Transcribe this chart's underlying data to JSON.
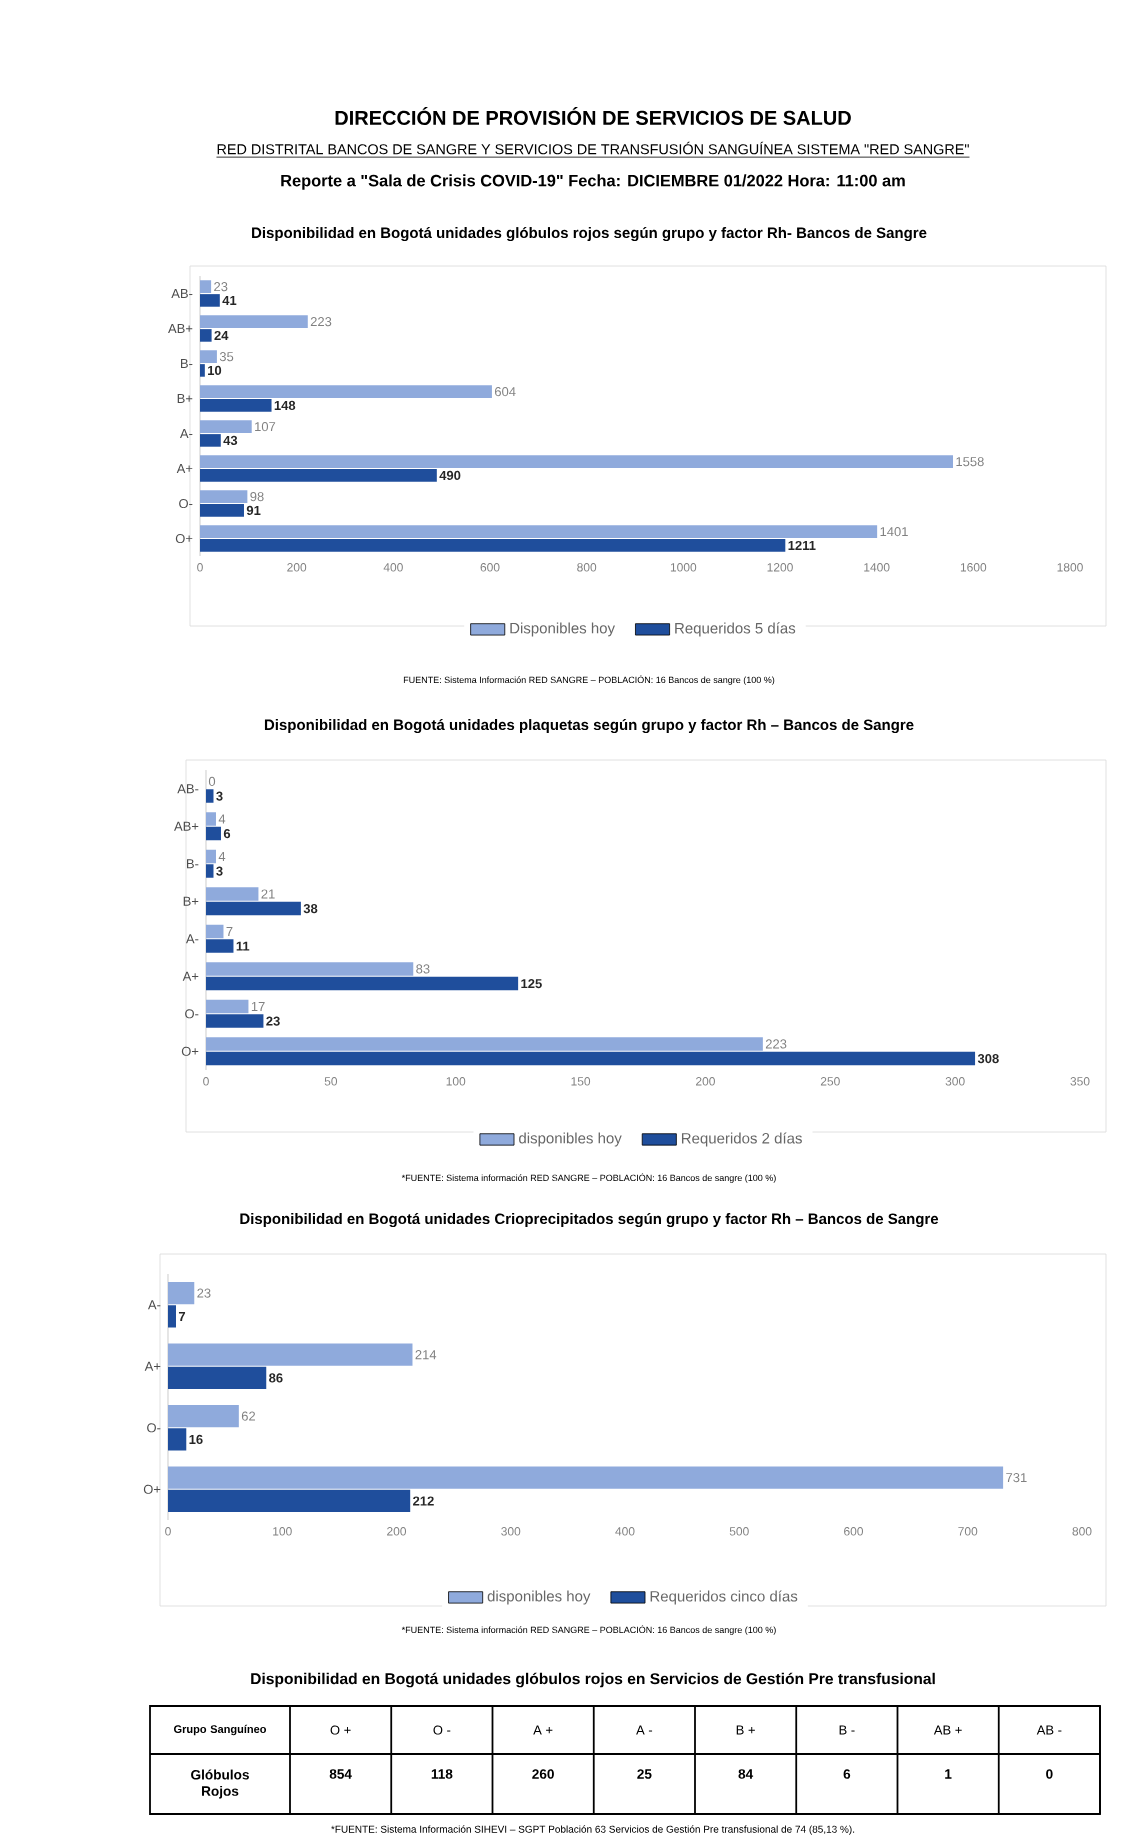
{
  "chart_data": [
    {
      "type": "bar",
      "orientation": "horizontal",
      "title": "Disponibilidad en Bogotá unidades glóbulos rojos según grupo y factor Rh- Bancos de Sangre",
      "annotations": [
        "DIRECCIÓN DE PROVISIÓN DE SERVICIOS DE SALUD",
        "RED DISTRITAL BANCOS DE SANGRE Y SERVICIOS DE TRANSFUSIÓN SANGUÍNEA SISTEMA \"RED SANGRE\"",
        "Reporte a \"Sala de Crisis COVID-19\" Fecha: DICIEMBRE 01/2022   Hora:  11:00 am",
        "FUENTE: Sistema Información RED SANGRE – POBLACIÓN: 16 Bancos de sangre (100 %)"
      ],
      "categories": [
        "AB-",
        "AB+",
        "B-",
        "B+",
        "A-",
        "A+",
        "O-",
        "O+"
      ],
      "series": [
        {
          "name": "Disponibles hoy",
          "color": "#8faadc",
          "values": [
            23,
            223,
            35,
            604,
            107,
            1558,
            98,
            1401
          ]
        },
        {
          "name": "Requeridos 5 días",
          "color": "#1f4e9c",
          "values": [
            41,
            24,
            10,
            148,
            43,
            490,
            91,
            1211
          ]
        }
      ],
      "xlim": [
        0,
        1800
      ],
      "xticks": [
        0,
        200,
        400,
        600,
        800,
        1000,
        1200,
        1400,
        1600,
        1800
      ],
      "data_labels": true,
      "legend": "bottom"
    },
    {
      "type": "bar",
      "orientation": "horizontal",
      "title": "Disponibilidad en Bogotá unidades plaquetas según grupo y factor Rh – Bancos de Sangre",
      "annotations": [
        "*FUENTE: Sistema información RED SANGRE – POBLACIÓN: 16 Bancos de sangre (100 %)"
      ],
      "categories": [
        "AB-",
        "AB+",
        "B-",
        "B+",
        "A-",
        "A+",
        "O-",
        "O+"
      ],
      "series": [
        {
          "name": "disponibles hoy",
          "color": "#8faadc",
          "values": [
            0,
            4,
            4,
            21,
            7,
            83,
            17,
            223
          ]
        },
        {
          "name": "Requeridos 2 días",
          "color": "#1f4e9c",
          "values": [
            3,
            6,
            3,
            38,
            11,
            125,
            23,
            308
          ]
        }
      ],
      "xlim": [
        0,
        350
      ],
      "xticks": [
        0,
        50,
        100,
        150,
        200,
        250,
        300,
        350
      ],
      "data_labels": true,
      "legend": "bottom"
    },
    {
      "type": "bar",
      "orientation": "horizontal",
      "title": "Disponibilidad en Bogotá unidades Crioprecipitados según grupo y factor Rh – Bancos de Sangre",
      "annotations": [
        "*FUENTE: Sistema información RED SANGRE – POBLACIÓN: 16 Bancos de sangre (100 %)"
      ],
      "categories": [
        "A-",
        "A+",
        "O-",
        "O+"
      ],
      "series": [
        {
          "name": "disponibles hoy",
          "color": "#8faadc",
          "values": [
            23,
            214,
            62,
            731
          ]
        },
        {
          "name": "Requeridos cinco días",
          "color": "#1f4e9c",
          "values": [
            7,
            86,
            16,
            212
          ]
        }
      ],
      "xlim": [
        0,
        800
      ],
      "xticks": [
        0,
        100,
        200,
        300,
        400,
        500,
        600,
        700,
        800
      ],
      "data_labels": true,
      "legend": "bottom"
    },
    {
      "type": "other",
      "title": "Disponibilidad en Bogotá unidades glóbulos rojos en Servicios de Gestión Pre transfusional",
      "xlabel": "Grupo Sanguíneo",
      "ylabel": "Glóbulos Rojos",
      "categories": [
        "O +",
        "O -",
        "A +",
        "A -",
        "B +",
        "B -",
        "AB +",
        "AB -"
      ],
      "values": [
        854,
        118,
        260,
        25,
        84,
        6,
        1,
        0
      ],
      "data_labels": true,
      "annotations": [
        "*FUENTE: Sistema Información SIHEVI – SGPT Población 63 Servicios de Gestión Pre transfusional de 74 (85,13 %)."
      ]
    }
  ]
}
